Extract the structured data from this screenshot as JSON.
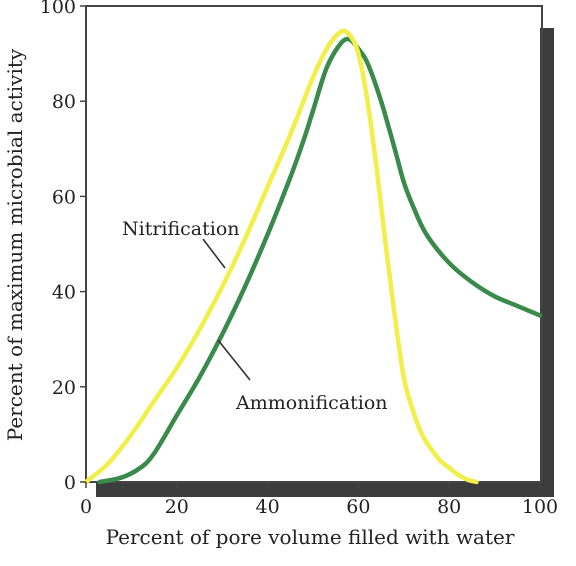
{
  "chart_data": {
    "type": "line",
    "title": "",
    "xlabel": "Percent of pore volume filled with water",
    "ylabel": "Percent of maximum microbial activity",
    "xlim": [
      0,
      100
    ],
    "ylim": [
      0,
      100
    ],
    "xticks": [
      "0",
      "20",
      "40",
      "60",
      "80",
      "100"
    ],
    "yticks": [
      "0",
      "20",
      "40",
      "60",
      "80",
      "100"
    ],
    "grid": false,
    "legend": "none",
    "series": [
      {
        "name": "Nitrification",
        "color": "#f2ee4a",
        "x": [
          0,
          5,
          10,
          15,
          20,
          25,
          30,
          35,
          40,
          45,
          50,
          53,
          56,
          58,
          60,
          62,
          64,
          66,
          68,
          70,
          72,
          74,
          76,
          78,
          80,
          82,
          84,
          86
        ],
        "y": [
          0,
          4,
          10,
          17,
          24,
          32,
          41,
          51,
          62,
          73,
          85,
          91,
          94.5,
          94,
          90,
          80,
          66,
          50,
          35,
          22,
          15,
          10,
          7,
          4.5,
          3,
          1.5,
          0.5,
          0
        ]
      },
      {
        "name": "Ammonification",
        "color": "#3a8a4c",
        "x": [
          3,
          8,
          12,
          15,
          20,
          25,
          30,
          35,
          40,
          45,
          48,
          50,
          53,
          56,
          58,
          60,
          62,
          65,
          68,
          70,
          72,
          75,
          80,
          85,
          90,
          95,
          100
        ],
        "y": [
          0,
          1,
          3,
          6,
          14,
          22,
          31,
          41,
          52,
          64,
          72,
          78,
          87,
          92,
          93,
          91,
          88,
          80,
          70,
          63,
          58,
          52,
          46,
          42,
          39,
          37,
          35
        ]
      }
    ],
    "annotations": [
      {
        "text": "Nitrification",
        "series": "Nitrification"
      },
      {
        "text": "Ammonification",
        "series": "Ammonification"
      }
    ]
  }
}
